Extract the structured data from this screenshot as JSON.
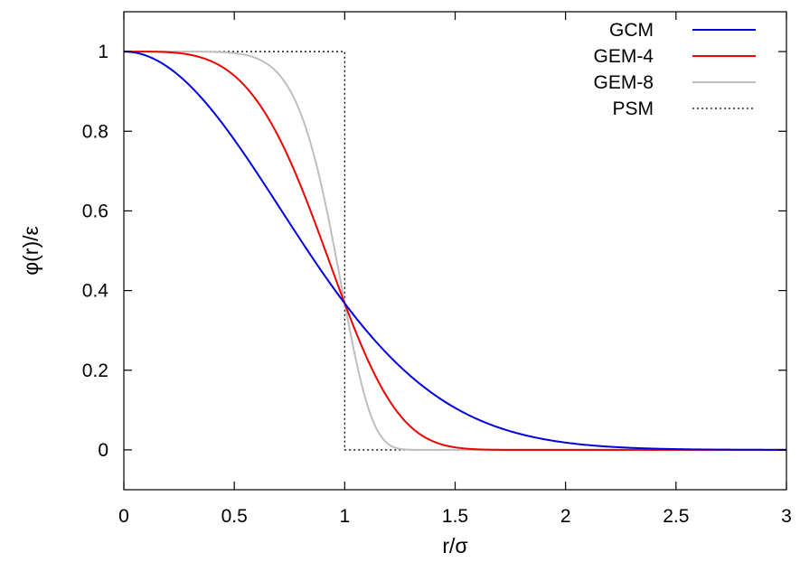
{
  "chart_data": {
    "type": "line",
    "xlabel": "r/σ",
    "ylabel": "φ(r)/ε",
    "xlim": [
      0,
      3
    ],
    "ylim": [
      -0.1,
      1.1
    ],
    "xticks": [
      0,
      0.5,
      1,
      1.5,
      2,
      2.5,
      3
    ],
    "xtick_labels": [
      "0",
      "0.5",
      "1",
      "1.5",
      "2",
      "2.5",
      "3"
    ],
    "yticks": [
      0,
      0.2,
      0.4,
      0.6,
      0.8,
      1
    ],
    "ytick_labels": [
      "0",
      "0.2",
      "0.4",
      "0.6",
      "0.8",
      "1"
    ],
    "grid": false,
    "legend_position": "top-right",
    "series": [
      {
        "name": "GCM",
        "color": "#0000dd",
        "style": "solid",
        "function": "exp(-x^2)"
      },
      {
        "name": "GEM-4",
        "color": "#ee0000",
        "style": "solid",
        "function": "exp(-x^4)"
      },
      {
        "name": "GEM-8",
        "color": "#bebebe",
        "style": "solid",
        "function": "exp(-x^8)"
      },
      {
        "name": "PSM",
        "color": "#000000",
        "style": "dotted",
        "function": "1 for x<1, 0 for x>1"
      }
    ]
  }
}
